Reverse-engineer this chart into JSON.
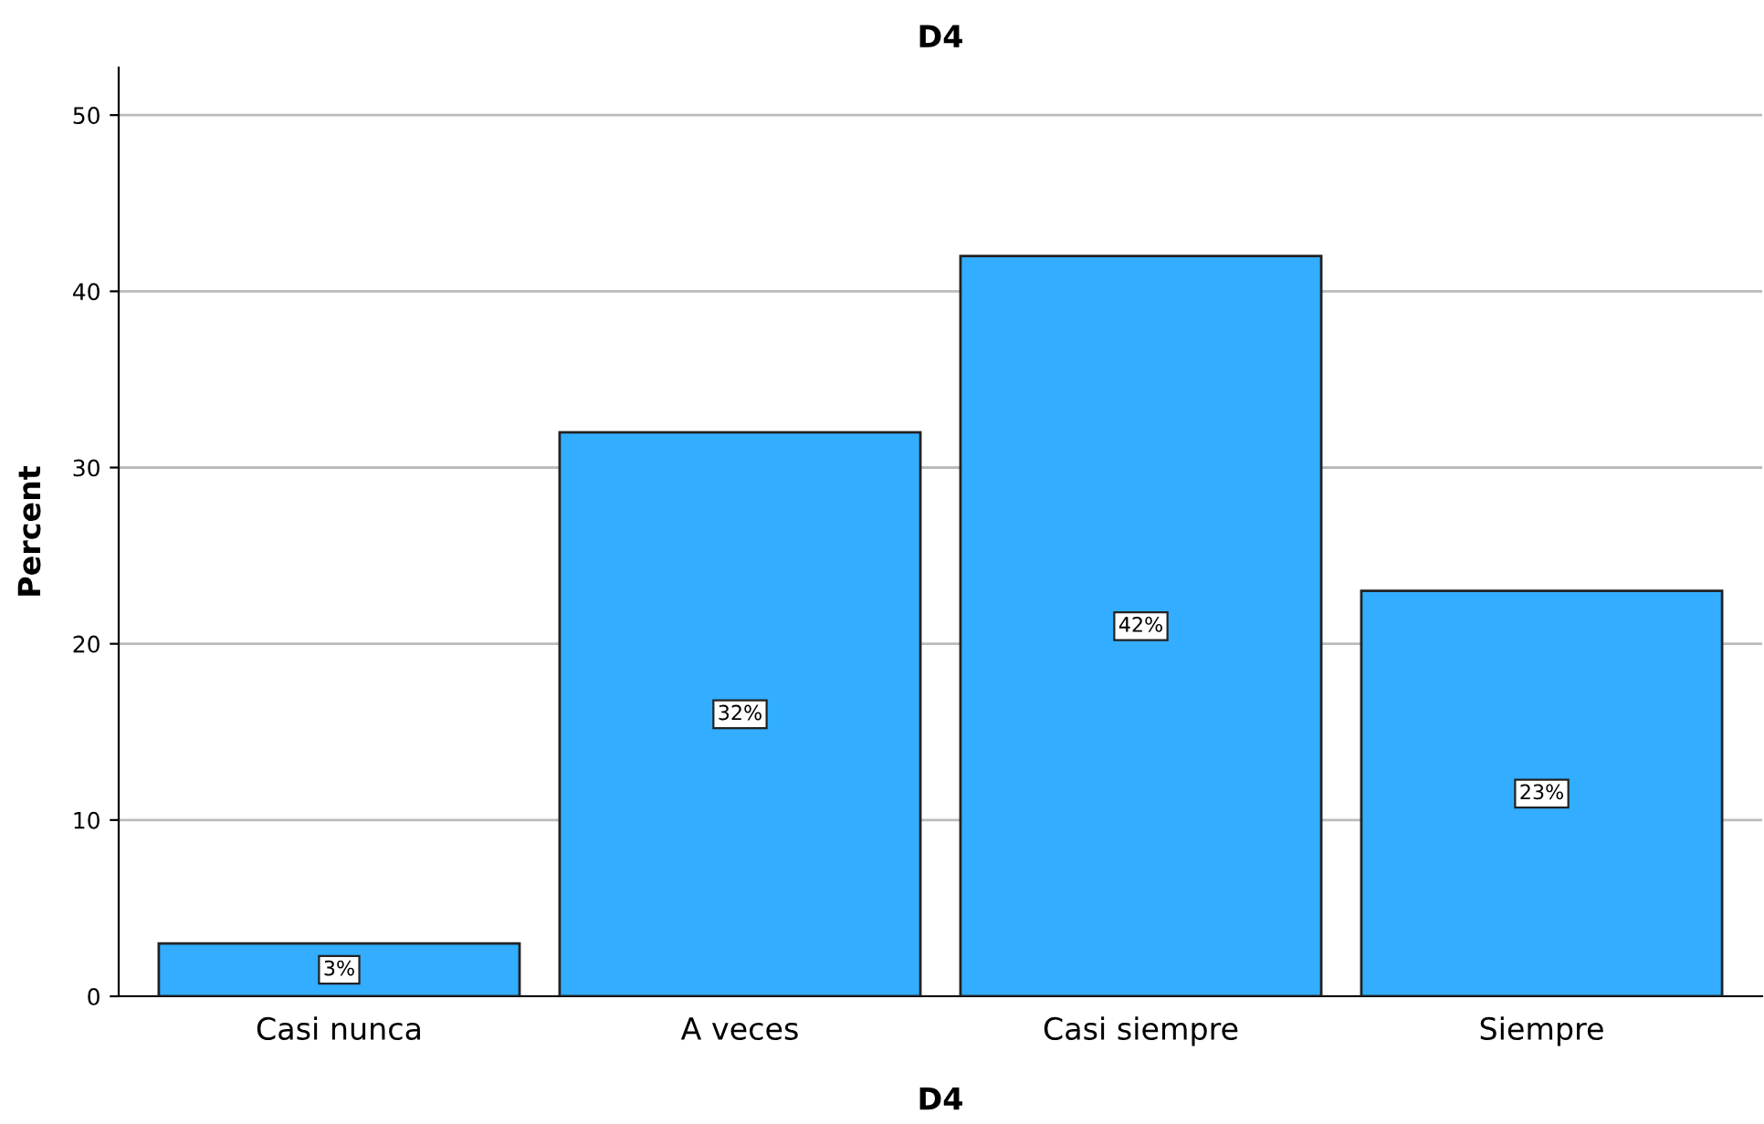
{
  "chart_data": {
    "type": "bar",
    "title": "D4",
    "xlabel": "D4",
    "ylabel": "Percent",
    "categories": [
      "Casi nunca",
      "A veces",
      "Casi siempre",
      "Siempre"
    ],
    "values": [
      3,
      32,
      42,
      23
    ],
    "value_labels": [
      "3%",
      "32%",
      "42%",
      "23%"
    ],
    "color": "#33adff",
    "ylim": [
      0,
      52.7
    ],
    "yticks": [
      0,
      10,
      20,
      30,
      40,
      50
    ],
    "grid": "y",
    "legend": false
  }
}
